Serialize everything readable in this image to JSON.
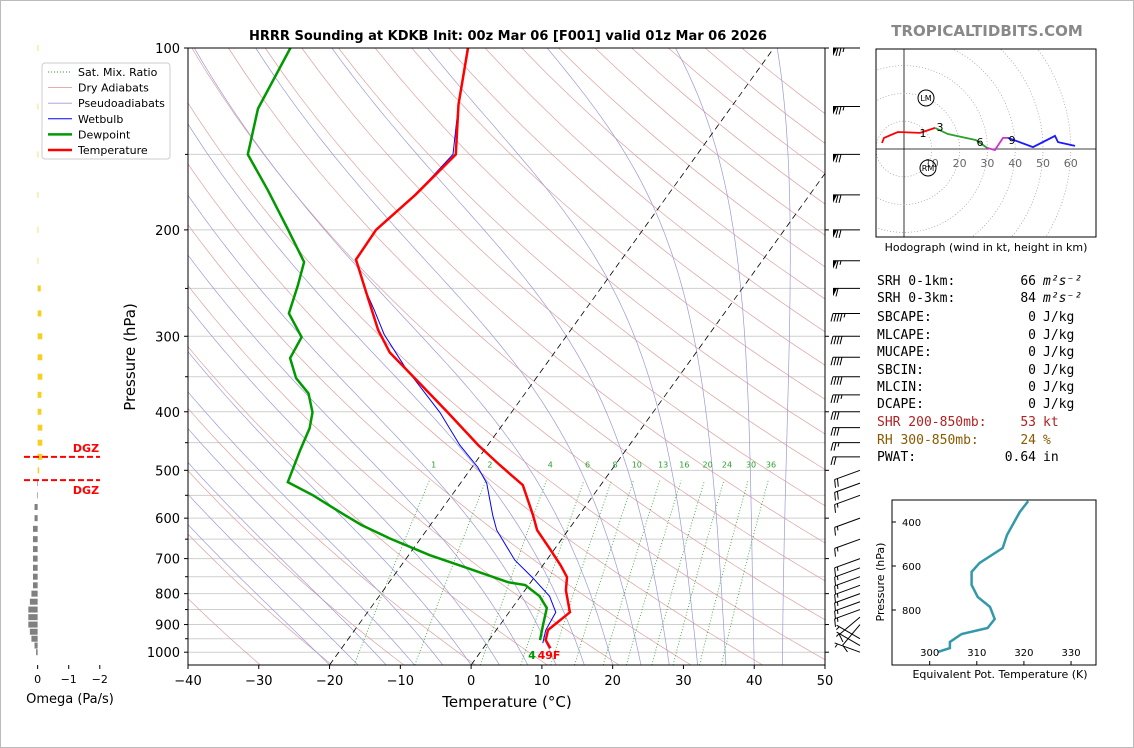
{
  "site_title": "TROPICALTIDBITS.COM",
  "chart_data": [
    {
      "type": "skewt",
      "title": "HRRR Sounding at KDKB Init: 00z Mar 06 [F001] valid 01z Mar 06 2026",
      "xlabel": "Temperature (°C)",
      "ylabel": "Pressure (hPa)",
      "xlim": [
        -40,
        50
      ],
      "xticks": [
        {
          "value": -40,
          "label": "−40"
        },
        {
          "value": -30,
          "label": "−30"
        },
        {
          "value": -20,
          "label": "−20"
        },
        {
          "value": -10,
          "label": "−10"
        },
        0,
        10,
        20,
        30,
        40,
        50
      ],
      "ylim": [
        1050,
        100
      ],
      "yticks": [
        100,
        200,
        300,
        400,
        500,
        600,
        700,
        800,
        900,
        1000
      ],
      "minor_yticks": [
        150,
        250,
        350,
        450,
        550,
        650,
        750,
        850,
        950
      ],
      "log_y": true,
      "grid": true,
      "legend": "upper left",
      "reference_lines": [
        {
          "name": "Sat. Mix. Ratio",
          "color": "#2ca02c",
          "values": [
            1,
            2,
            4,
            6,
            8,
            10,
            13,
            16,
            20,
            24,
            30,
            36
          ]
        },
        {
          "name": "Dry Adiabats",
          "color": "#e0a0a0"
        },
        {
          "name": "Pseudoadiabats",
          "color": "#9a9ad8"
        }
      ],
      "series": [
        {
          "name": "Wetbulb",
          "color": "#0000ff",
          "pressure": [
            966,
            919,
            859,
            808,
            754,
            704,
            628,
            593,
            525,
            494,
            454,
            401,
            337,
            298,
            272,
            252,
            224,
            200,
            175,
            150,
            124,
            100
          ],
          "values": [
            7.9,
            7.0,
            6.6,
            4.1,
            -0.1,
            -4.5,
            -10.1,
            -12.2,
            -16.3,
            -19.2,
            -24.0,
            -30.1,
            -39.7,
            -45.9,
            -49.7,
            -53.0,
            -57.5,
            -57.7,
            -55.7,
            -54.5,
            -58.8,
            -63.3
          ]
        },
        {
          "name": "Dewpoint",
          "color": "#009900",
          "pressure": [
            955,
            902,
            845,
            808,
            774,
            766,
            718,
            691,
            648,
            616,
            593,
            550,
            523,
            463,
            426,
            401,
            373,
            352,
            326,
            301,
            275,
            247,
            226,
            200,
            172,
            150,
            126,
            100
          ],
          "values": [
            7.2,
            6.1,
            4.9,
            2.7,
            -0.5,
            -3.2,
            -11.8,
            -17.0,
            -24.4,
            -29.7,
            -33.1,
            -39.6,
            -44.5,
            -46.0,
            -46.9,
            -48.1,
            -50.6,
            -53.9,
            -56.8,
            -57.3,
            -61.5,
            -63.1,
            -64.6,
            -70.1,
            -77.0,
            -83.5,
            -86.7,
            -88.3
          ]
        },
        {
          "name": "Temperature",
          "color": "#ff0000",
          "pressure": [
            985,
            955,
            919,
            859,
            790,
            751,
            718,
            673,
            628,
            593,
            529,
            490,
            454,
            401,
            359,
            319,
            293,
            252,
            224,
            200,
            175,
            150,
            124,
            100
          ],
          "values": [
            9.5,
            8.0,
            7.3,
            8.6,
            5.8,
            4.6,
            2.5,
            -0.8,
            -4.4,
            -6.5,
            -11.0,
            -16.3,
            -21.4,
            -29.0,
            -35.9,
            -43.3,
            -47.2,
            -53.0,
            -57.5,
            -57.7,
            -55.7,
            -54.1,
            -58.8,
            -63.2
          ]
        }
      ],
      "annotations": [
        {
          "text": "4",
          "color": "#009900"
        },
        {
          "text": "49F",
          "color": "#ff0000"
        }
      ],
      "wind": {
        "pressure": [
          100,
          125,
          150,
          175,
          200,
          225,
          250,
          275,
          300,
          325,
          350,
          375,
          400,
          425,
          450,
          475,
          500,
          525,
          550,
          600,
          650,
          700,
          725,
          750,
          775,
          800,
          825,
          850,
          875,
          900,
          950,
          975,
          1000
        ],
        "speed": [
          75,
          75,
          70,
          70,
          70,
          65,
          60,
          45,
          40,
          40,
          40,
          35,
          30,
          30,
          25,
          20,
          20,
          20,
          15,
          15,
          15,
          15,
          15,
          15,
          15,
          15,
          15,
          15,
          10,
          10,
          5,
          5,
          5
        ],
        "direction": [
          270,
          270,
          270,
          270,
          270,
          270,
          270,
          270,
          270,
          270,
          270,
          270,
          270,
          270,
          270,
          270,
          250,
          250,
          250,
          250,
          250,
          250,
          250,
          250,
          250,
          250,
          250,
          250,
          230,
          220,
          300,
          300,
          290
        ]
      }
    },
    {
      "type": "omega",
      "xlabel": "Omega (Pa/s)",
      "xlim": [
        0.6,
        -2.2
      ],
      "xticks": [
        0,
        {
          "value": -1,
          "label": "−1"
        },
        {
          "value": -2,
          "label": "−2"
        }
      ],
      "ylim": [
        1050,
        100
      ],
      "log_y": true,
      "pressure": [
        100,
        125,
        150,
        175,
        200,
        225,
        250,
        275,
        300,
        325,
        350,
        375,
        400,
        425,
        450,
        475,
        500,
        525,
        550,
        575,
        600,
        625,
        650,
        675,
        700,
        725,
        750,
        775,
        800,
        825,
        850,
        875,
        900,
        925,
        950,
        975,
        1000
      ],
      "values": [
        -0.02,
        -0.02,
        -0.02,
        -0.02,
        -0.02,
        -0.02,
        -0.1,
        -0.12,
        -0.15,
        -0.15,
        -0.15,
        -0.12,
        -0.12,
        -0.15,
        -0.15,
        -0.15,
        -0.05,
        0.02,
        0.02,
        0.1,
        0.1,
        0.15,
        0.15,
        0.15,
        0.15,
        0.15,
        0.15,
        0.15,
        0.2,
        0.25,
        0.3,
        0.3,
        0.3,
        0.25,
        0.2,
        0.1,
        0.05
      ],
      "color_negative": "#f5d020",
      "color_positive": "#808080",
      "dgz_labels": [
        "DGZ",
        "DGZ"
      ],
      "dgz_pressures": [
        475,
        519
      ],
      "dgz_color": "#ff0000"
    },
    {
      "type": "hodograph",
      "caption": "Hodograph (wind in kt, height in km)",
      "rings": [
        10,
        20,
        30,
        40,
        50,
        60
      ],
      "series": [
        {
          "color": "#ff0000",
          "x": [
            -7.9,
            -7.2,
            -2.2,
            5.8,
            11.2
          ],
          "values": [
            2.2,
            4.0,
            6.1,
            5.8,
            7.6
          ]
        },
        {
          "color": "#2ca02c",
          "x": [
            11.2,
            15.8,
            25.9,
            29.9
          ],
          "values": [
            7.6,
            5.4,
            3.2,
            0.4
          ]
        },
        {
          "color": "#cc33cc",
          "x": [
            29.9,
            32.7,
            35.6,
            37.4
          ],
          "values": [
            0.4,
            -0.4,
            4.0,
            4.0
          ]
        },
        {
          "color": "#1a1aff",
          "x": [
            37.4,
            46.4,
            54.3,
            55.4,
            61.5
          ],
          "values": [
            4.0,
            0.7,
            4.7,
            2.5,
            1.1
          ]
        }
      ],
      "height_labels": [
        1,
        3,
        6,
        9
      ],
      "motion_labels": [
        "LM",
        "RM"
      ]
    },
    {
      "type": "line",
      "xlabel": "Equivalent Pot. Temperature (K)",
      "ylabel": "Pressure (hPa)",
      "xlim": [
        292,
        335.3
      ],
      "xticks": [
        300,
        310,
        320,
        330
      ],
      "ylim": [
        1050,
        300
      ],
      "yticks": [
        400,
        600,
        800
      ],
      "color": "#3399aa",
      "pressure": [
        305,
        355,
        459,
        518,
        586,
        627,
        686,
        741,
        786,
        841,
        882,
        909,
        945,
        973,
        991
      ],
      "values": [
        320.9,
        319.1,
        316.4,
        315.5,
        310.6,
        308.9,
        308.9,
        310.2,
        312.8,
        313.8,
        312.3,
        306.8,
        304.3,
        304.3,
        301.7
      ]
    }
  ],
  "stats": [
    {
      "label": "SRH 0-1km:",
      "value": 66,
      "unit": "m²s⁻²",
      "color": "#000000"
    },
    {
      "label": "SRH 0-3km:",
      "value": 84,
      "unit": "m²s⁻²",
      "color": "#000000"
    },
    {
      "label": "SBCAPE:",
      "value": 0,
      "unit": "J/kg",
      "color": "#000000"
    },
    {
      "label": "MLCAPE:",
      "value": 0,
      "unit": "J/kg",
      "color": "#000000"
    },
    {
      "label": "MUCAPE:",
      "value": 0,
      "unit": "J/kg",
      "color": "#000000"
    },
    {
      "label": "SBCIN:",
      "value": 0,
      "unit": "J/kg",
      "color": "#000000"
    },
    {
      "label": "MLCIN:",
      "value": 0,
      "unit": "J/kg",
      "color": "#000000"
    },
    {
      "label": "DCAPE:",
      "value": 0,
      "unit": "J/kg",
      "color": "#000000"
    },
    {
      "label": "SHR 200-850mb:",
      "value": 53,
      "unit": "kt",
      "color": "#b22222"
    },
    {
      "label": "RH 300-850mb:",
      "value": 24,
      "unit": "%",
      "color": "#8b5a00"
    },
    {
      "label": "PWAT:",
      "value": 0.64,
      "unit": "in",
      "color": "#000000"
    }
  ]
}
